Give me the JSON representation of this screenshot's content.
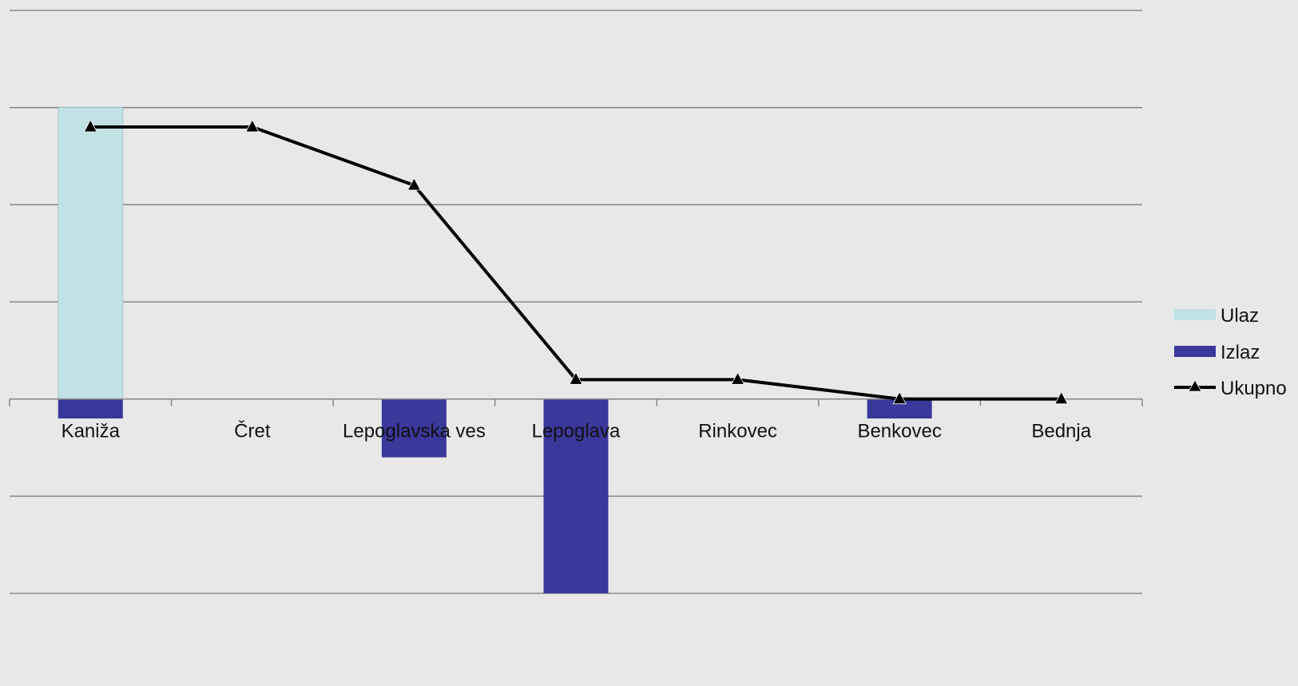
{
  "chart_data": {
    "type": "bar",
    "categories": [
      "Kaniža",
      "Čret",
      "Lepoglavska ves",
      "Lepoglava",
      "Rinkovec",
      "Benkovec",
      "Bednja"
    ],
    "series": [
      {
        "name": "Ulaz",
        "kind": "bar",
        "color": "#c0e2e4",
        "values": [
          30,
          0,
          0,
          0,
          0,
          0,
          0
        ]
      },
      {
        "name": "Izlaz",
        "kind": "bar",
        "color": "#39389b",
        "values": [
          -2,
          0,
          -6,
          -20,
          0,
          -2,
          0
        ]
      },
      {
        "name": "Ukupno",
        "kind": "line",
        "marker": "triangle",
        "color": "#000000",
        "values": [
          28,
          28,
          22,
          2,
          2,
          0,
          0
        ]
      }
    ],
    "ylim": [
      -20,
      40
    ],
    "y_gridlines": [
      -20,
      -10,
      0,
      10,
      20,
      30,
      40
    ],
    "y_tick_labels_shown": false,
    "grid": true,
    "legend_position": "right"
  }
}
